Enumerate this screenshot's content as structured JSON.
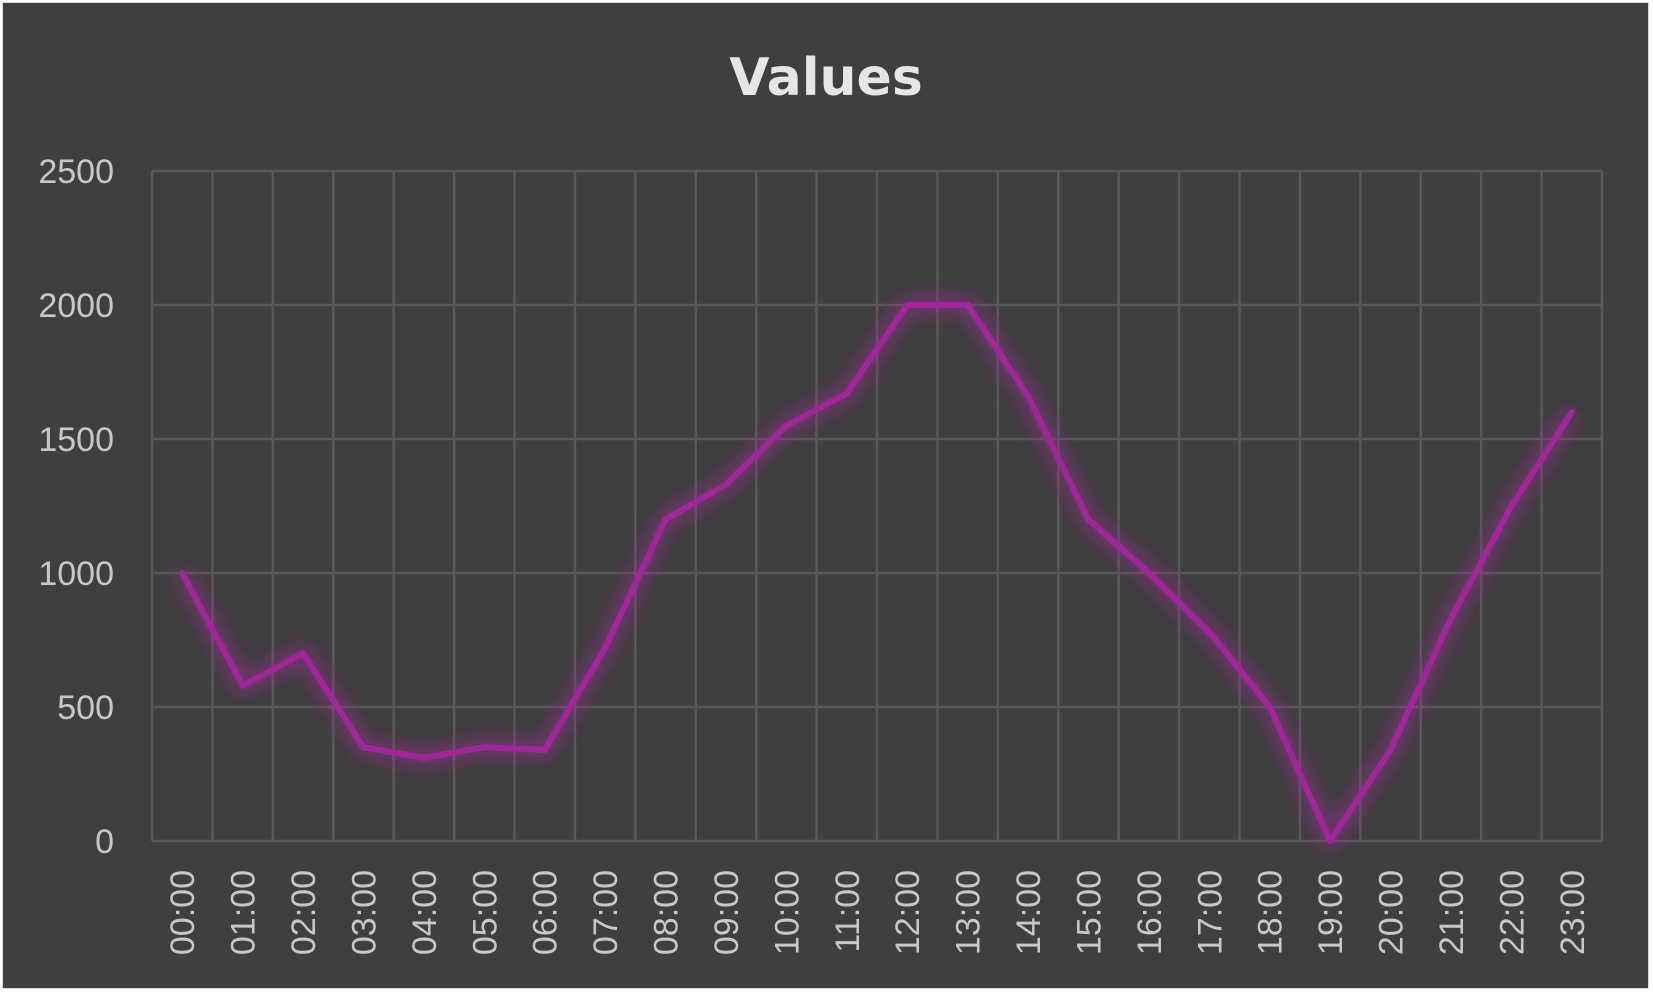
{
  "chart_data": {
    "type": "line",
    "title": "Values",
    "xlabel": "",
    "ylabel": "",
    "categories": [
      "00:00",
      "01:00",
      "02:00",
      "03:00",
      "04:00",
      "05:00",
      "06:00",
      "07:00",
      "08:00",
      "09:00",
      "10:00",
      "11:00",
      "12:00",
      "13:00",
      "14:00",
      "15:00",
      "16:00",
      "17:00",
      "18:00",
      "19:00",
      "20:00",
      "21:00",
      "22:00",
      "23:00"
    ],
    "series": [
      {
        "values": [
          1000,
          580,
          700,
          350,
          310,
          350,
          340,
          720,
          1200,
          1330,
          1550,
          1670,
          2000,
          2000,
          1660,
          1200,
          1000,
          780,
          500,
          0,
          340,
          830,
          1250,
          1600
        ],
        "color": "#a0279a"
      }
    ],
    "ylim": [
      0,
      2500
    ],
    "yticks": [
      "0",
      "500",
      "1000",
      "1500",
      "2000",
      "2500"
    ],
    "grid": true,
    "background": "#3f3f3f",
    "gridColor": "#595959"
  }
}
